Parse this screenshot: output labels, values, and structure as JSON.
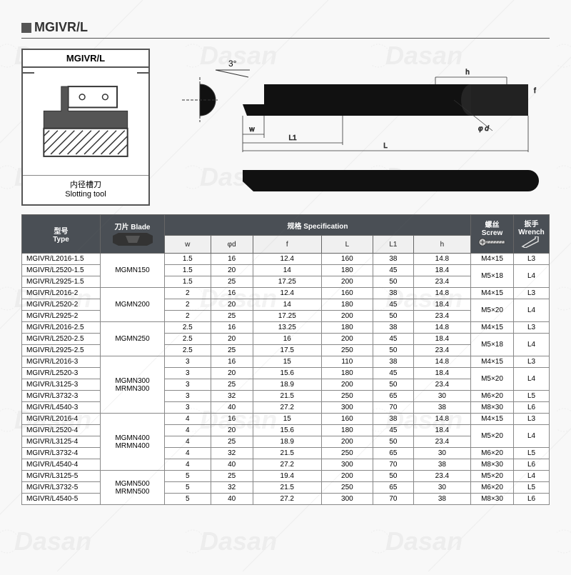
{
  "title": "MGIVR/L",
  "diagram": {
    "label": "MGIVR/L",
    "footer_cn": "内径槽刀",
    "footer_en": "Slotting tool"
  },
  "tool_view": {
    "angle_label": "3°",
    "dims": [
      "w",
      "L1",
      "L",
      "h",
      "f",
      "φ d"
    ],
    "body_color": "#111111",
    "outline_color": "#333333"
  },
  "table": {
    "group_headers": {
      "type": {
        "cn": "型号",
        "en": "Type"
      },
      "blade": {
        "cn": "刀片",
        "en": "Blade"
      },
      "spec": {
        "cn": "规格",
        "en": "Specification"
      },
      "screw": {
        "cn": "螺丝",
        "en": "Screw"
      },
      "wrench": {
        "cn": "扳手",
        "en": "Wrench"
      }
    },
    "spec_cols": [
      "w",
      "φd",
      "f",
      "L",
      "L1",
      "h"
    ],
    "groups": [
      {
        "blade": "MGMN150",
        "rows": [
          {
            "type": "MGIVR/L2016-1.5",
            "w": "1.5",
            "phid": "16",
            "f": "12.4",
            "L": "160",
            "L1": "38",
            "h": "14.8",
            "screw": "M4×15",
            "wrench": "L3"
          },
          {
            "type": "MGIVR/L2520-1.5",
            "w": "1.5",
            "phid": "20",
            "f": "14",
            "L": "180",
            "L1": "45",
            "h": "18.4",
            "screw": "M5×18",
            "wrench": "L4",
            "screw_span": 2,
            "wrench_span": 2
          },
          {
            "type": "MGIVR/L2925-1.5",
            "w": "1.5",
            "phid": "25",
            "f": "17.25",
            "L": "200",
            "L1": "50",
            "h": "23.4"
          }
        ]
      },
      {
        "blade": "MGMN200",
        "rows": [
          {
            "type": "MGIVR/L2016-2",
            "w": "2",
            "phid": "16",
            "f": "12.4",
            "L": "160",
            "L1": "38",
            "h": "14.8",
            "screw": "M4×15",
            "wrench": "L3"
          },
          {
            "type": "MGIVR/L2520-2",
            "w": "2",
            "phid": "20",
            "f": "14",
            "L": "180",
            "L1": "45",
            "h": "18.4",
            "screw": "M5×20",
            "wrench": "L4",
            "screw_span": 2,
            "wrench_span": 2
          },
          {
            "type": "MGIVR/L2925-2",
            "w": "2",
            "phid": "25",
            "f": "17.25",
            "L": "200",
            "L1": "50",
            "h": "23.4"
          }
        ]
      },
      {
        "blade": "MGMN250",
        "rows": [
          {
            "type": "MGIVR/L2016-2.5",
            "w": "2.5",
            "phid": "16",
            "f": "13.25",
            "L": "180",
            "L1": "38",
            "h": "14.8",
            "screw": "M4×15",
            "wrench": "L3"
          },
          {
            "type": "MGIVR/L2520-2.5",
            "w": "2.5",
            "phid": "20",
            "f": "16",
            "L": "200",
            "L1": "45",
            "h": "18.4",
            "screw": "M5×18",
            "wrench": "L4",
            "screw_span": 2,
            "wrench_span": 2
          },
          {
            "type": "MGIVR/L2925-2.5",
            "w": "2.5",
            "phid": "25",
            "f": "17.5",
            "L": "250",
            "L1": "50",
            "h": "23.4"
          }
        ]
      },
      {
        "blade": "MGMN300\nMRMN300",
        "rows": [
          {
            "type": "MGIVR/L2016-3",
            "w": "3",
            "phid": "16",
            "f": "15",
            "L": "110",
            "L1": "38",
            "h": "14.8",
            "screw": "M4×15",
            "wrench": "L3"
          },
          {
            "type": "MGIVR/L2520-3",
            "w": "3",
            "phid": "20",
            "f": "15.6",
            "L": "180",
            "L1": "45",
            "h": "18.4",
            "screw": "M5×20",
            "wrench": "L4",
            "screw_span": 2,
            "wrench_span": 2
          },
          {
            "type": "MGIVR/L3125-3",
            "w": "3",
            "phid": "25",
            "f": "18.9",
            "L": "200",
            "L1": "50",
            "h": "23.4"
          },
          {
            "type": "MGIVR/L3732-3",
            "w": "3",
            "phid": "32",
            "f": "21.5",
            "L": "250",
            "L1": "65",
            "h": "30",
            "screw": "M6×20",
            "wrench": "L5"
          },
          {
            "type": "MGIVR/L4540-3",
            "w": "3",
            "phid": "40",
            "f": "27.2",
            "L": "300",
            "L1": "70",
            "h": "38",
            "screw": "M8×30",
            "wrench": "L6"
          }
        ]
      },
      {
        "blade": "MGMN400\nMRMN400",
        "rows": [
          {
            "type": "MGIVR/L2016-4",
            "w": "4",
            "phid": "16",
            "f": "15",
            "L": "160",
            "L1": "38",
            "h": "14.8",
            "screw": "M4×15",
            "wrench": "L3"
          },
          {
            "type": "MGIVR/L2520-4",
            "w": "4",
            "phid": "20",
            "f": "15.6",
            "L": "180",
            "L1": "45",
            "h": "18.4",
            "screw": "M5×20",
            "wrench": "L4",
            "screw_span": 2,
            "wrench_span": 2
          },
          {
            "type": "MGIVR/L3125-4",
            "w": "4",
            "phid": "25",
            "f": "18.9",
            "L": "200",
            "L1": "50",
            "h": "23.4"
          },
          {
            "type": "MGIVR/L3732-4",
            "w": "4",
            "phid": "32",
            "f": "21.5",
            "L": "250",
            "L1": "65",
            "h": "30",
            "screw": "M6×20",
            "wrench": "L5"
          },
          {
            "type": "MGIVR/L4540-4",
            "w": "4",
            "phid": "40",
            "f": "27.2",
            "L": "300",
            "L1": "70",
            "h": "38",
            "screw": "M8×30",
            "wrench": "L6"
          }
        ]
      },
      {
        "blade": "MGMN500\nMRMN500",
        "rows": [
          {
            "type": "MGIVR/L3125-5",
            "w": "5",
            "phid": "25",
            "f": "19.4",
            "L": "200",
            "L1": "50",
            "h": "23.4",
            "screw": "M5×20",
            "wrench": "L4"
          },
          {
            "type": "MGIVR/L3732-5",
            "w": "5",
            "phid": "32",
            "f": "21.5",
            "L": "250",
            "L1": "65",
            "h": "30",
            "screw": "M6×20",
            "wrench": "L5"
          },
          {
            "type": "MGIVR/L4540-5",
            "w": "5",
            "phid": "40",
            "f": "27.2",
            "L": "300",
            "L1": "70",
            "h": "38",
            "screw": "M8×30",
            "wrench": "L6"
          }
        ]
      }
    ]
  },
  "style": {
    "header_bg": "#4a4f55",
    "border_color": "#888888",
    "text_color": "#222222"
  }
}
